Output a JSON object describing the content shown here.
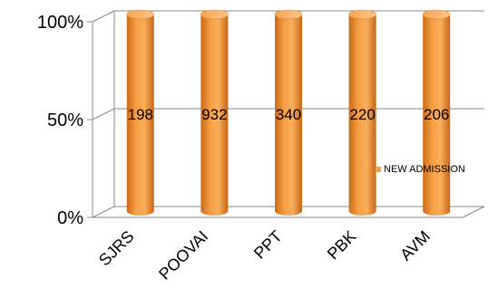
{
  "chart_data": {
    "type": "bar",
    "stacking": "100-percent",
    "style": "3d-cylinder",
    "categories": [
      "SJRS",
      "POOVAI",
      "PPT",
      "PBK",
      "AVM"
    ],
    "series": [
      {
        "name": "NEW ADMISSION",
        "values": [
          198,
          932,
          340,
          220,
          206
        ],
        "color": "#F7A047"
      }
    ],
    "y_ticks": [
      "0%",
      "50%",
      "100%"
    ],
    "ylim": [
      0,
      100
    ],
    "grid": true,
    "legend": "right"
  }
}
